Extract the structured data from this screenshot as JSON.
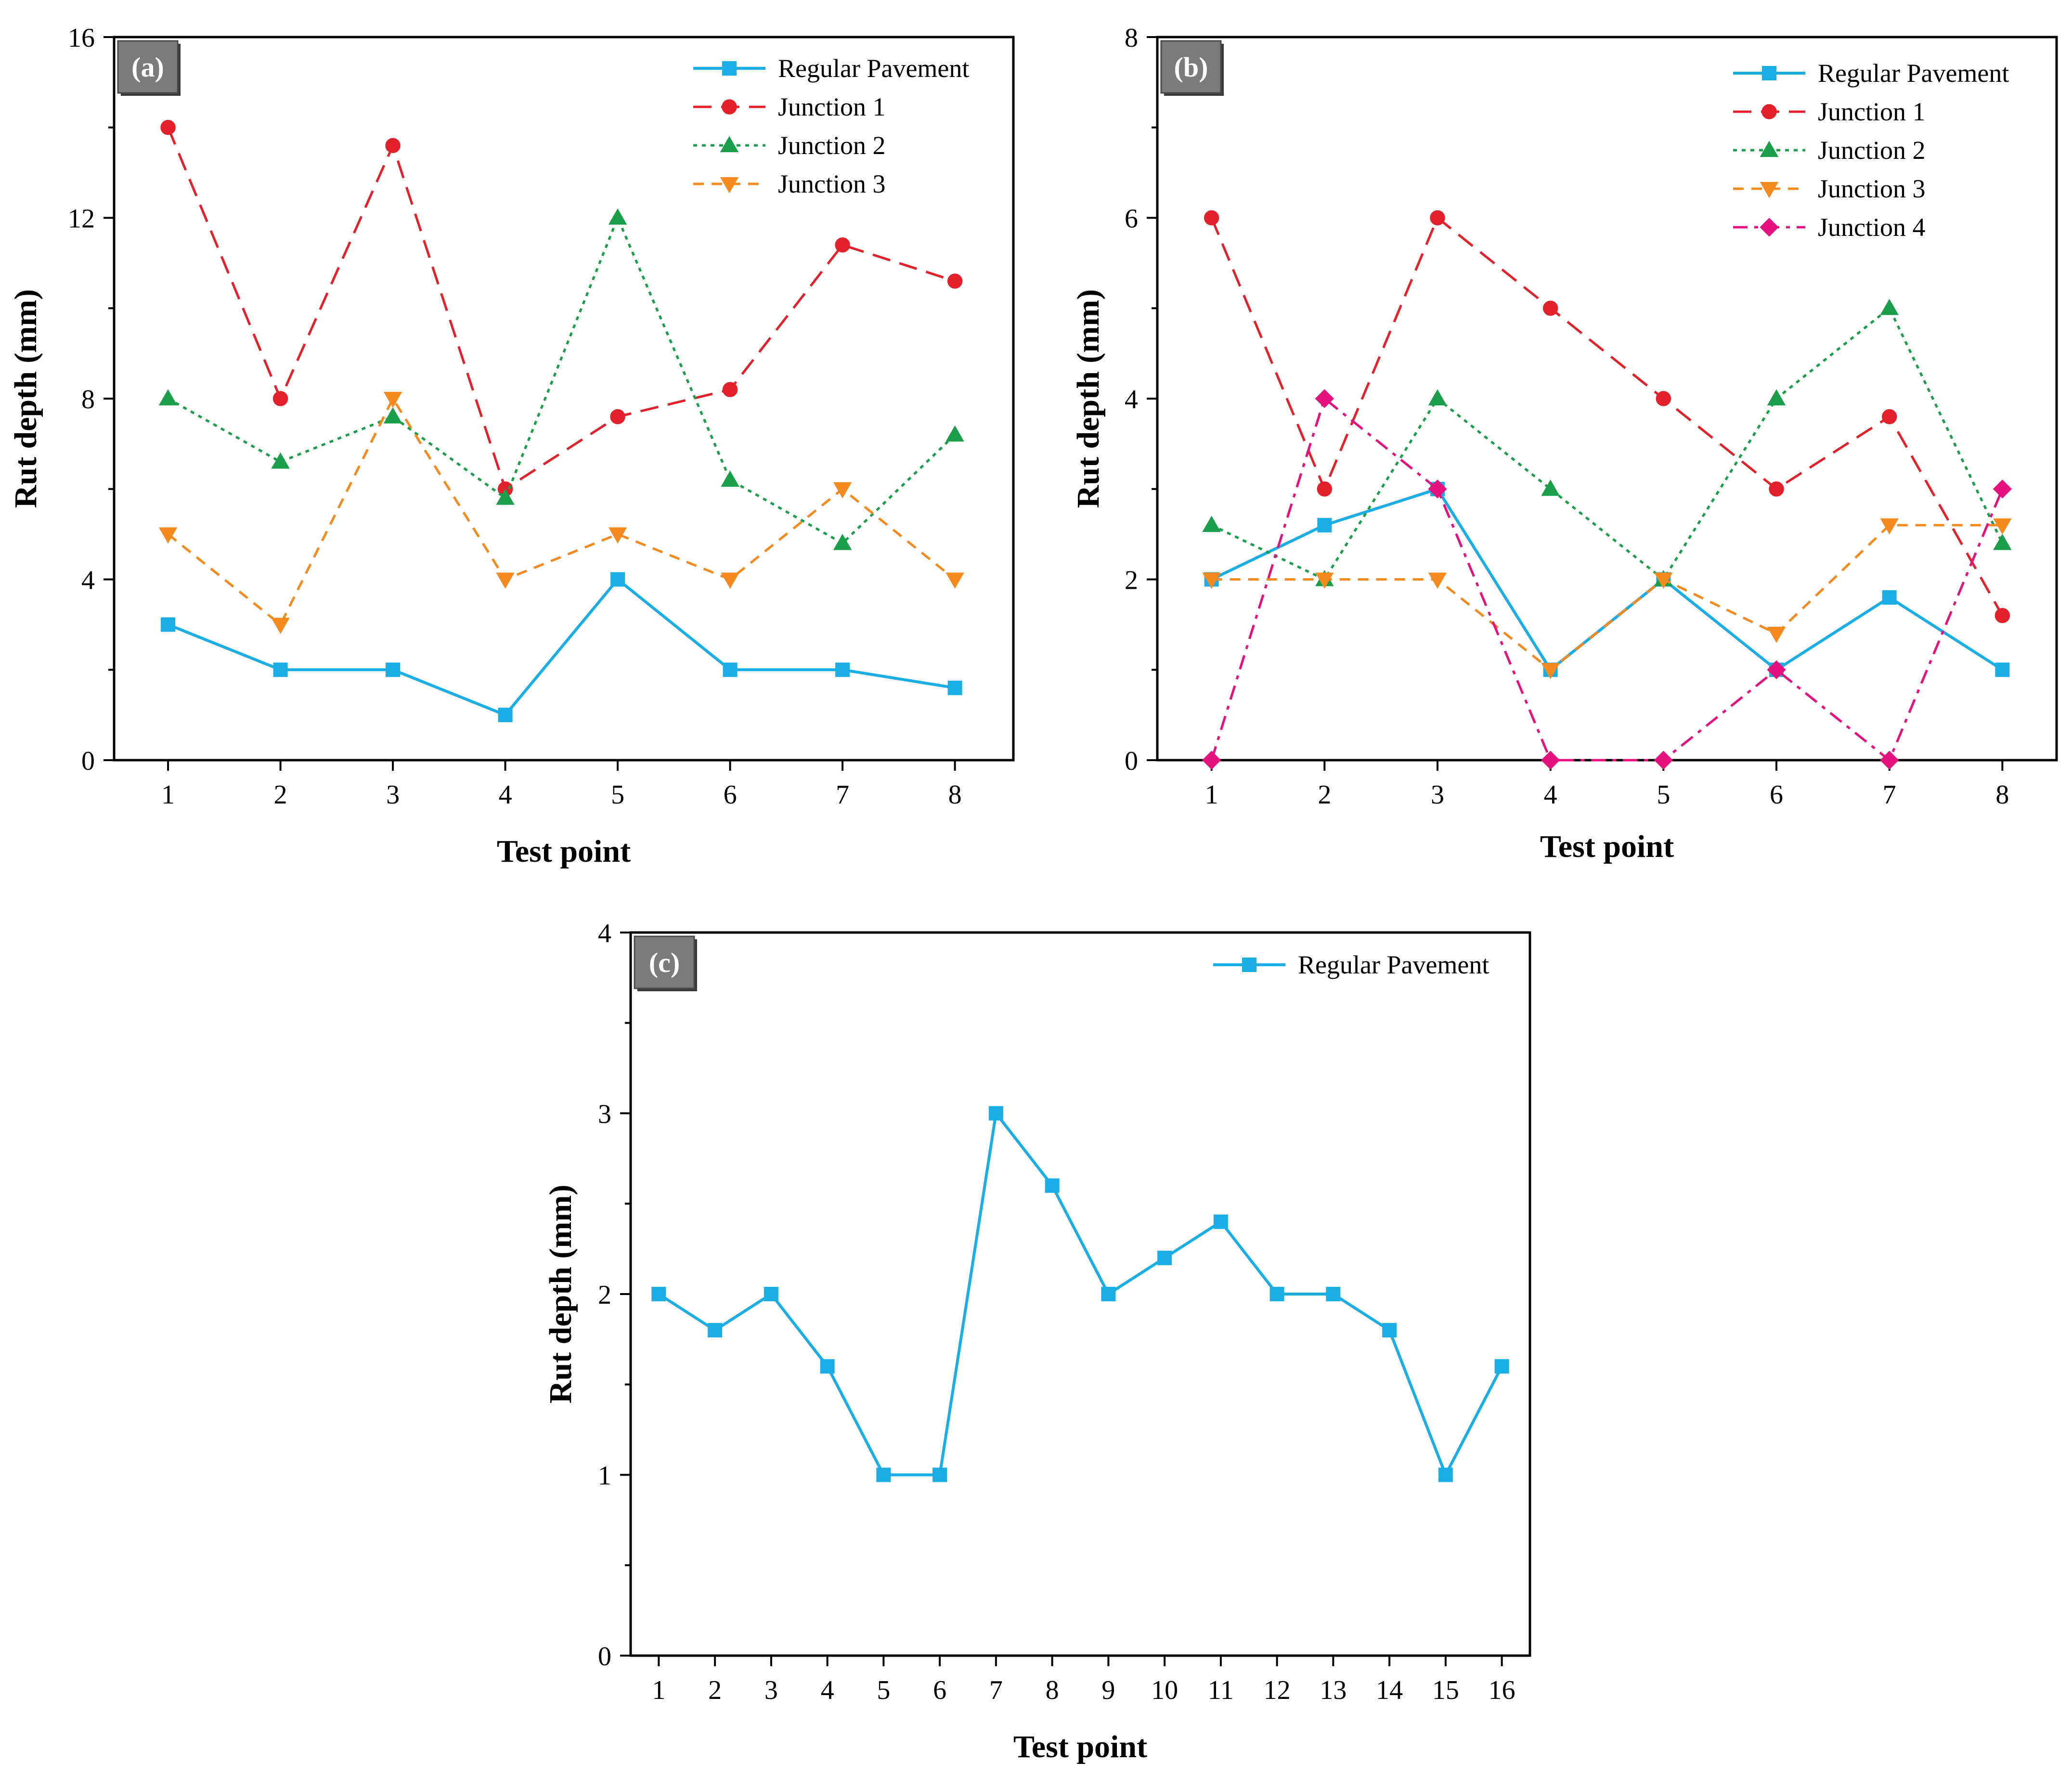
{
  "chart_data": [
    {
      "type": "line",
      "panel_label": "(a)",
      "title": "",
      "xlabel": "Test point",
      "ylabel": "Rut depth (mm)",
      "x": [
        1,
        2,
        3,
        4,
        5,
        6,
        7,
        8
      ],
      "x_tick_labels": [
        "1",
        "2",
        "3",
        "4",
        "5",
        "6",
        "7",
        "8"
      ],
      "xlim": [
        0.52,
        8.52
      ],
      "ylim": [
        0,
        16
      ],
      "y_ticks": [
        0,
        4,
        8,
        12,
        16
      ],
      "y_tick_labels": [
        "0",
        "4",
        "8",
        "12",
        "16"
      ],
      "grid": false,
      "legend_position": "top-right",
      "series": [
        {
          "name": "Regular Pavement",
          "values": [
            3,
            2,
            2,
            1,
            4,
            2,
            2,
            1.6
          ],
          "color": "#1aaee5",
          "marker": "square",
          "dash": "solid"
        },
        {
          "name": "Junction 1",
          "values": [
            14,
            8,
            13.6,
            6,
            7.6,
            8.2,
            11.4,
            10.6
          ],
          "color": "#e3212b",
          "marker": "circle",
          "dash": "dashed"
        },
        {
          "name": "Junction 2",
          "values": [
            8,
            6.6,
            7.6,
            5.8,
            12,
            6.2,
            4.8,
            7.2
          ],
          "color": "#1a9e4a",
          "marker": "triangle-up",
          "dash": "dotted"
        },
        {
          "name": "Junction 3",
          "values": [
            5,
            3,
            8,
            4,
            5,
            4,
            6,
            4
          ],
          "color": "#f58a1f",
          "marker": "triangle-down",
          "dash": "short-dash"
        }
      ]
    },
    {
      "type": "line",
      "panel_label": "(b)",
      "title": "",
      "xlabel": "Test point",
      "ylabel": "Rut depth (mm)",
      "x": [
        1,
        2,
        3,
        4,
        5,
        6,
        7,
        8
      ],
      "x_tick_labels": [
        "1",
        "2",
        "3",
        "4",
        "5",
        "6",
        "7",
        "8"
      ],
      "xlim": [
        0.52,
        8.48
      ],
      "ylim": [
        0,
        8
      ],
      "y_ticks": [
        0,
        2,
        4,
        6,
        8
      ],
      "y_tick_labels": [
        "0",
        "2",
        "4",
        "6",
        "8"
      ],
      "grid": false,
      "legend_position": "top-right",
      "series": [
        {
          "name": "Regular Pavement",
          "values": [
            2,
            2.6,
            3,
            1,
            2,
            1,
            1.8,
            1
          ],
          "color": "#1aaee5",
          "marker": "square",
          "dash": "solid"
        },
        {
          "name": "Junction 1",
          "values": [
            6,
            3,
            6,
            5,
            4,
            3,
            3.8,
            1.6
          ],
          "color": "#e3212b",
          "marker": "circle",
          "dash": "dashed"
        },
        {
          "name": "Junction 2",
          "values": [
            2.6,
            2,
            4,
            3,
            2,
            4,
            5,
            2.4
          ],
          "color": "#1a9e4a",
          "marker": "triangle-up",
          "dash": "dotted"
        },
        {
          "name": "Junction 3",
          "values": [
            2,
            2,
            2,
            1,
            2,
            1.4,
            2.6,
            2.6
          ],
          "color": "#f58a1f",
          "marker": "triangle-down",
          "dash": "short-dash"
        },
        {
          "name": "Junction 4",
          "values": [
            0,
            4,
            3,
            0,
            0,
            1,
            0,
            3
          ],
          "color": "#e4117e",
          "marker": "diamond",
          "dash": "dash-dot"
        }
      ]
    },
    {
      "type": "line",
      "panel_label": "(c)",
      "title": "",
      "xlabel": "Test point",
      "ylabel": "Rut depth (mm)",
      "x": [
        1,
        2,
        3,
        4,
        5,
        6,
        7,
        8,
        9,
        10,
        11,
        12,
        13,
        14,
        15,
        16
      ],
      "x_tick_labels": [
        "1",
        "2",
        "3",
        "4",
        "5",
        "6",
        "7",
        "8",
        "9",
        "10",
        "11",
        "12",
        "13",
        "14",
        "15",
        "16"
      ],
      "xlim": [
        0.5,
        16.5
      ],
      "ylim": [
        0,
        4
      ],
      "y_ticks": [
        0,
        1,
        2,
        3,
        4
      ],
      "y_tick_labels": [
        "0",
        "1",
        "2",
        "3",
        "4"
      ],
      "grid": false,
      "legend_position": "top-right",
      "series": [
        {
          "name": "Regular Pavement",
          "values": [
            2,
            1.8,
            2,
            1.6,
            1,
            1,
            3,
            2.6,
            2,
            2.2,
            2.4,
            2,
            2,
            1.8,
            1,
            1.6
          ],
          "color": "#1aaee5",
          "marker": "square",
          "dash": "solid"
        }
      ]
    }
  ]
}
